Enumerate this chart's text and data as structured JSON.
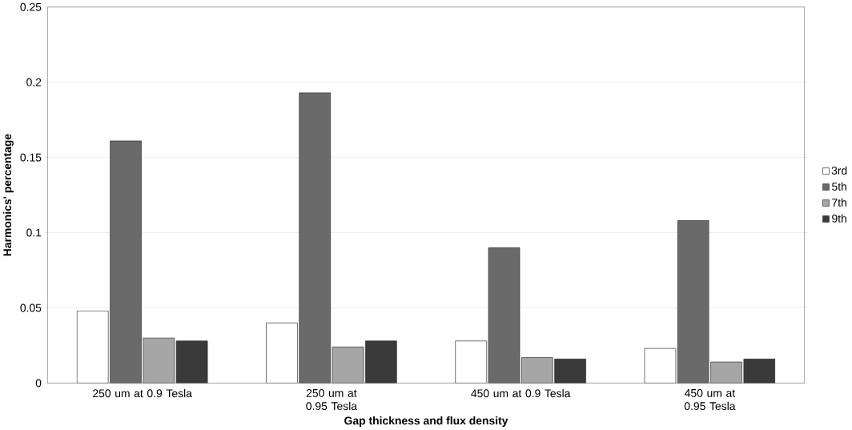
{
  "chart_data": {
    "type": "bar",
    "xlabel": "Gap thickness and flux density",
    "ylabel": "Harmonics' percentage",
    "categories": [
      "250 um at 0.9 Tesla",
      "250 um at 0.95 Tesla",
      "450 um at 0.9 Tesla",
      "450 um at 0.95 Tesla"
    ],
    "series": [
      {
        "name": "3rd",
        "color": "#ffffff",
        "values": [
          0.048,
          0.04,
          0.028,
          0.023
        ]
      },
      {
        "name": "5th",
        "color": "#6a6a6a",
        "values": [
          0.161,
          0.193,
          0.09,
          0.108
        ]
      },
      {
        "name": "7th",
        "color": "#a6a6a6",
        "values": [
          0.03,
          0.024,
          0.017,
          0.014
        ]
      },
      {
        "name": "9th",
        "color": "#3a3a3a",
        "values": [
          0.028,
          0.028,
          0.016,
          0.016
        ]
      }
    ],
    "ylim": [
      0,
      0.25
    ],
    "yticks": [
      0,
      0.05,
      0.1,
      0.15,
      0.2,
      0.25
    ],
    "grid": "y",
    "legend": "right"
  }
}
